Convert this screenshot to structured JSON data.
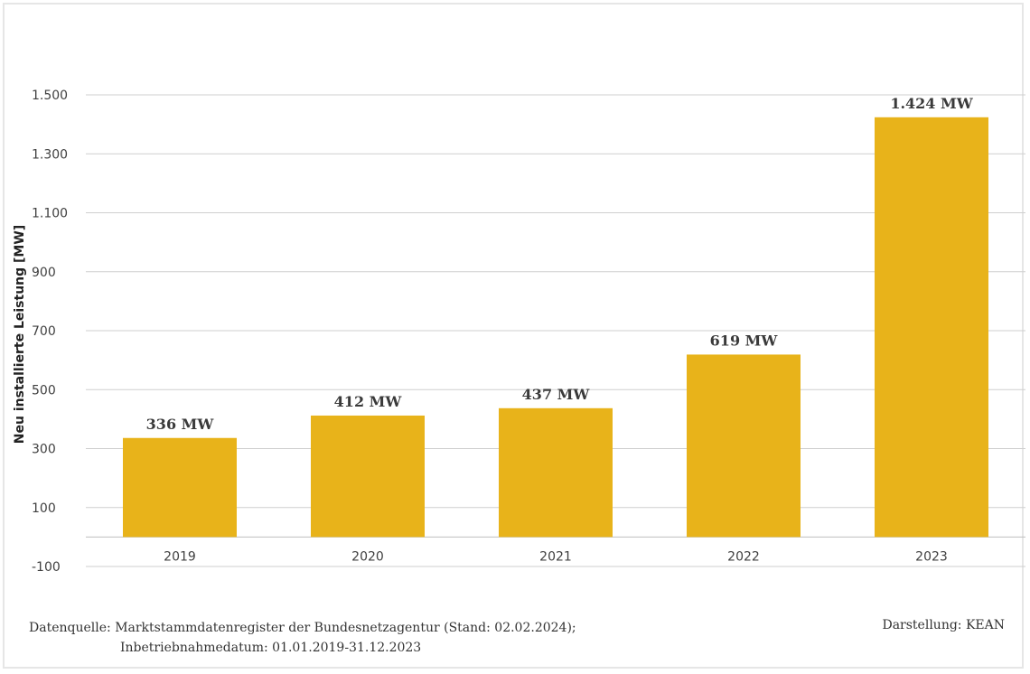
{
  "chart_data": {
    "type": "bar",
    "categories": [
      "2019",
      "2020",
      "2021",
      "2022",
      "2023"
    ],
    "values": [
      336,
      412,
      437,
      619,
      1424
    ],
    "data_labels": [
      "336 MW",
      "412 MW",
      "437 MW",
      "619 MW",
      "1.424 MW"
    ],
    "ylabel": "Neu installierte Leistung [MW]",
    "ylim": [
      -100,
      1500
    ],
    "yticks": [
      -100,
      100,
      300,
      500,
      700,
      900,
      1100,
      1300,
      1500
    ],
    "ytick_labels": [
      "-100",
      "100",
      "300",
      "500",
      "700",
      "900",
      "1.100",
      "1.300",
      "1.500"
    ],
    "grid": true,
    "bar_color": "#E8B31A",
    "legend": "none"
  },
  "footer": {
    "source_label": "Datenquelle:",
    "source_line1": "Marktstammdatenregister der Bundesnetzagentur (Stand: 02.02.2024);",
    "source_line2": "Inbetriebnahmedatum: 01.01.2019-31.12.2023",
    "credit": "Darstellung: KEAN"
  }
}
